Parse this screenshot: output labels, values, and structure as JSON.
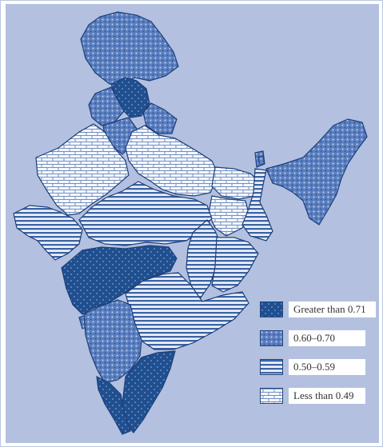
{
  "legend": {
    "items": [
      {
        "label": "Greater than 0.71",
        "pattern": "dark-dotted"
      },
      {
        "label": "0.60–0.70",
        "pattern": "medium-dotted"
      },
      {
        "label": "0.50–0.59",
        "pattern": "horizontal-lines"
      },
      {
        "label": "Less than 0.49",
        "pattern": "brick"
      }
    ]
  },
  "colors": {
    "background": "#b3c0e0",
    "dark_fill": "#1f4f8f",
    "medium_fill": "#5a7fbf",
    "stripe_color": "#3f66a6",
    "border": "#1d3f78"
  }
}
